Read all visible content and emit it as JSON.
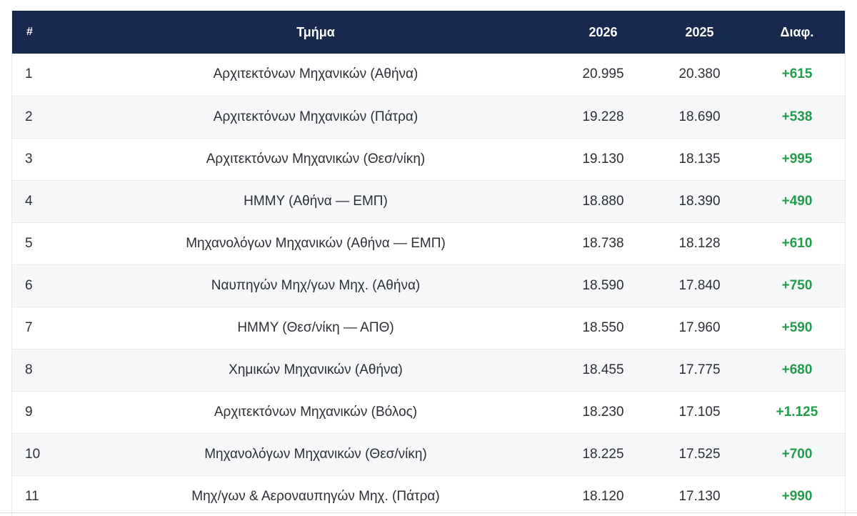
{
  "table": {
    "headers": {
      "rank": "#",
      "department": "Τμήμα",
      "year_a": "2026",
      "year_b": "2025",
      "diff": "Διαφ."
    },
    "rows": [
      {
        "rank": "1",
        "department": "Αρχιτεκτόνων Μηχανικών (Αθήνα)",
        "year_a": "20.995",
        "year_b": "20.380",
        "diff": "+615"
      },
      {
        "rank": "2",
        "department": "Αρχιτεκτόνων Μηχανικών (Πάτρα)",
        "year_a": "19.228",
        "year_b": "18.690",
        "diff": "+538"
      },
      {
        "rank": "3",
        "department": "Αρχιτεκτόνων Μηχανικών (Θεσ/νίκη)",
        "year_a": "19.130",
        "year_b": "18.135",
        "diff": "+995"
      },
      {
        "rank": "4",
        "department": "ΗΜΜΥ (Αθήνα — ΕΜΠ)",
        "year_a": "18.880",
        "year_b": "18.390",
        "diff": "+490"
      },
      {
        "rank": "5",
        "department": "Μηχανολόγων Μηχανικών (Αθήνα — ΕΜΠ)",
        "year_a": "18.738",
        "year_b": "18.128",
        "diff": "+610"
      },
      {
        "rank": "6",
        "department": "Ναυπηγών Μηχ/γων Μηχ. (Αθήνα)",
        "year_a": "18.590",
        "year_b": "17.840",
        "diff": "+750"
      },
      {
        "rank": "7",
        "department": "ΗΜΜΥ (Θεσ/νίκη — ΑΠΘ)",
        "year_a": "18.550",
        "year_b": "17.960",
        "diff": "+590"
      },
      {
        "rank": "8",
        "department": "Χημικών Μηχανικών (Αθήνα)",
        "year_a": "18.455",
        "year_b": "17.775",
        "diff": "+680"
      },
      {
        "rank": "9",
        "department": "Αρχιτεκτόνων Μηχανικών (Βόλος)",
        "year_a": "18.230",
        "year_b": "17.105",
        "diff": "+1.125"
      },
      {
        "rank": "10",
        "department": "Μηχανολόγων Μηχανικών (Θεσ/νίκη)",
        "year_a": "18.225",
        "year_b": "17.525",
        "diff": "+700"
      },
      {
        "rank": "11",
        "department": "Μηχ/γων & Αεροναυπηγών Μηχ. (Πάτρα)",
        "year_a": "18.120",
        "year_b": "17.130",
        "diff": "+990"
      }
    ]
  },
  "colors": {
    "header_bg": "#172a4d",
    "header_text": "#ffffff",
    "diff_positive": "#1f9d4a",
    "row_alt_bg": "#f6f7f9"
  }
}
